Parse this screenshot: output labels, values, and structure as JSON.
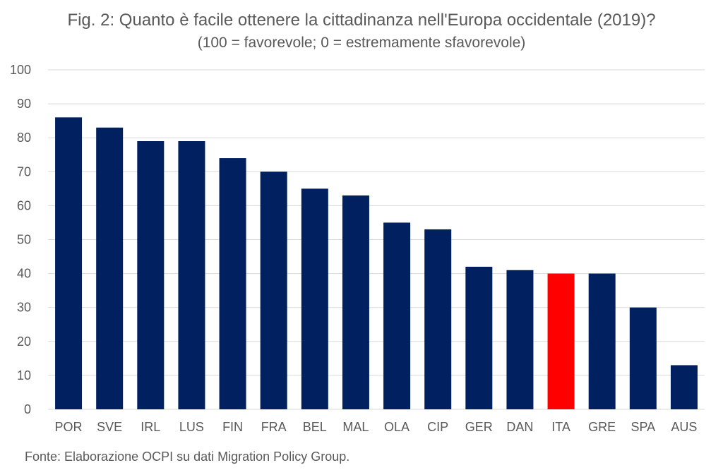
{
  "title": "Fig. 2: Quanto è facile ottenere la cittadinanza nell'Europa occidentale (2019)?",
  "subtitle": "(100 = favorevole; 0 = estremamente sfavorevole)",
  "source": "Fonte: Elaborazione OCPI su dati Migration Policy Group.",
  "colors": {
    "bar": "#002060",
    "highlight": "#ff0000",
    "grid": "#d9d9d9",
    "text": "#595959"
  },
  "chart_data": {
    "type": "bar",
    "categories": [
      "POR",
      "SVE",
      "IRL",
      "LUS",
      "FIN",
      "FRA",
      "BEL",
      "MAL",
      "OLA",
      "CIP",
      "GER",
      "DAN",
      "ITA",
      "GRE",
      "SPA",
      "AUS"
    ],
    "values": [
      86,
      83,
      79,
      79,
      74,
      70,
      65,
      63,
      55,
      53,
      42,
      41,
      40,
      40,
      30,
      13
    ],
    "highlight_category": "ITA",
    "title": "Fig. 2: Quanto è facile ottenere la cittadinanza nell'Europa occidentale (2019)?",
    "subtitle": "(100 = favorevole; 0 = estremamente sfavorevole)",
    "xlabel": "",
    "ylabel": "",
    "ylim": [
      0,
      100
    ],
    "yticks": [
      0,
      10,
      20,
      30,
      40,
      50,
      60,
      70,
      80,
      90,
      100
    ],
    "grid": true,
    "legend": "none"
  }
}
